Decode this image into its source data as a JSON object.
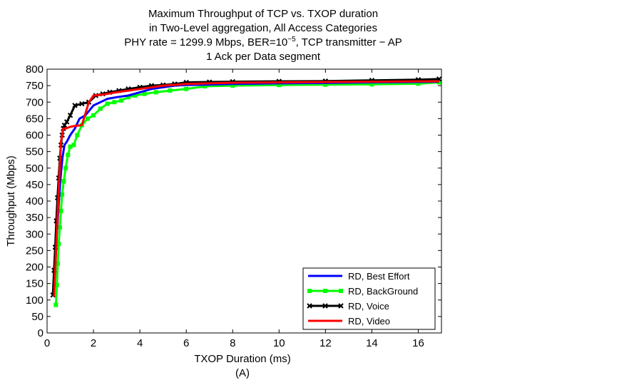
{
  "chart_data": {
    "type": "line",
    "title_lines": [
      "Maximum Throughput of TCP vs. TXOP duration",
      "in Two-Level aggregation, All Access Categories",
      "PHY rate = 1299.9 Mbps, BER=10",
      "1 Ack per Data segment"
    ],
    "title_ber_exponent": "−5",
    "title_line3_suffix": ", TCP transmitter − AP",
    "xlabel": "TXOP Duration (ms)",
    "ylabel": "Throughput (Mbps)",
    "caption": "(A)",
    "xlim": [
      0,
      17
    ],
    "ylim": [
      0,
      800
    ],
    "xticks": [
      0,
      2,
      4,
      6,
      8,
      10,
      12,
      14,
      16
    ],
    "yticks": [
      0,
      50,
      100,
      150,
      200,
      250,
      300,
      350,
      400,
      450,
      500,
      550,
      600,
      650,
      700,
      750,
      800
    ],
    "legend_position": "bottom-right",
    "series": [
      {
        "name": "RD, Best Effort",
        "color": "#0000ff",
        "marker": "none",
        "x": [
          0.28,
          0.35,
          0.42,
          0.5,
          0.58,
          0.66,
          0.75,
          0.85,
          1.0,
          1.2,
          1.4,
          1.65,
          2.0,
          2.3,
          2.6,
          3.0,
          3.5,
          4.0,
          4.5,
          5.0,
          5.5,
          6.0,
          6.8,
          8.0,
          10.0,
          12.0,
          14.0,
          16.0,
          16.9
        ],
        "y": [
          110,
          200,
          300,
          390,
          470,
          530,
          570,
          580,
          600,
          620,
          650,
          660,
          690,
          700,
          710,
          715,
          720,
          730,
          740,
          745,
          750,
          752,
          753,
          755,
          757,
          758,
          760,
          761,
          762
        ]
      },
      {
        "name": "RD, BackGround",
        "color": "#00ff00",
        "marker": "square",
        "x": [
          0.38,
          0.42,
          0.46,
          0.5,
          0.55,
          0.6,
          0.65,
          0.72,
          0.8,
          0.9,
          1.0,
          1.15,
          1.3,
          1.5,
          1.75,
          2.0,
          2.3,
          2.6,
          2.9,
          3.2,
          3.5,
          3.8,
          4.2,
          4.7,
          5.3,
          6.0,
          6.8,
          8.0,
          10.0,
          12.0,
          14.0,
          16.0,
          16.9
        ],
        "y": [
          85,
          145,
          210,
          270,
          320,
          370,
          420,
          460,
          500,
          540,
          565,
          570,
          600,
          630,
          650,
          660,
          680,
          695,
          700,
          705,
          715,
          720,
          725,
          730,
          735,
          740,
          748,
          750,
          752,
          753,
          754,
          756,
          760
        ]
      },
      {
        "name": "RD, Voice",
        "color": "#000000",
        "marker": "x",
        "x": [
          0.25,
          0.3,
          0.35,
          0.4,
          0.45,
          0.5,
          0.55,
          0.6,
          0.65,
          0.7,
          0.75,
          0.85,
          1.0,
          1.2,
          1.5,
          1.8,
          2.1,
          2.4,
          2.7,
          3.1,
          3.5,
          4.0,
          4.5,
          5.0,
          5.5,
          6.0,
          7.0,
          8.0,
          10.0,
          12.0,
          14.0,
          16.0,
          16.9
        ],
        "y": [
          115,
          190,
          260,
          340,
          410,
          470,
          530,
          570,
          600,
          620,
          630,
          640,
          660,
          690,
          695,
          700,
          720,
          725,
          730,
          735,
          740,
          745,
          750,
          752,
          755,
          760,
          761,
          762,
          763,
          764,
          766,
          768,
          770
        ]
      },
      {
        "name": "RD, Video",
        "color": "#ff0000",
        "marker": "none",
        "x": [
          0.3,
          0.4,
          0.5,
          0.6,
          0.7,
          0.8,
          1.0,
          1.2,
          1.5,
          1.8,
          2.0,
          2.3,
          2.6,
          3.0,
          3.5,
          4.0,
          5.0,
          6.0,
          7.0,
          8.0,
          10.0,
          12.0,
          14.0,
          16.0,
          16.9
        ],
        "y": [
          110,
          270,
          430,
          580,
          620,
          620,
          625,
          628,
          630,
          700,
          720,
          722,
          725,
          730,
          735,
          740,
          750,
          755,
          757,
          759,
          760,
          761,
          762,
          763,
          763
        ]
      }
    ]
  }
}
